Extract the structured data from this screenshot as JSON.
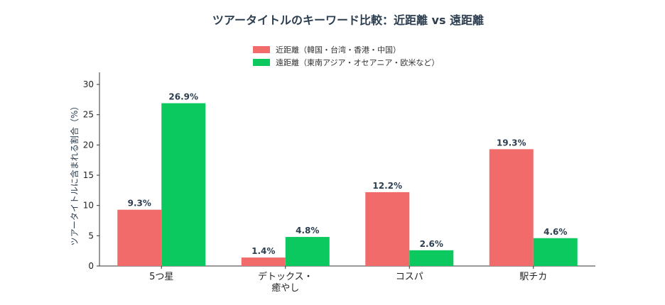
{
  "chart_data": {
    "type": "bar",
    "title": "ツアータイトルのキーワード比較：近距離 vs 遠距離",
    "xlabel": "",
    "ylabel": "ツアータイトルに含まれる割合（%）",
    "categories": [
      "5つ星",
      "デトックス・\n癒やし",
      "コスパ",
      "駅チカ"
    ],
    "series": [
      {
        "name": "近距離（韓国・台湾・香港・中国）",
        "color": "#f26b6b",
        "values": [
          9.3,
          1.4,
          12.2,
          19.3
        ],
        "labels": [
          "9.3%",
          "1.4%",
          "12.2%",
          "19.3%"
        ]
      },
      {
        "name": "遠距離（東南アジア・オセアニア・欧米など）",
        "color": "#0bc95f",
        "values": [
          26.9,
          4.8,
          2.6,
          4.6
        ],
        "labels": [
          "26.9%",
          "4.8%",
          "2.6%",
          "4.6%"
        ]
      }
    ],
    "ylim": [
      0,
      32
    ],
    "yticks": [
      0,
      5,
      10,
      15,
      20,
      25,
      30
    ],
    "grid": false,
    "legend_position": "top-center"
  }
}
